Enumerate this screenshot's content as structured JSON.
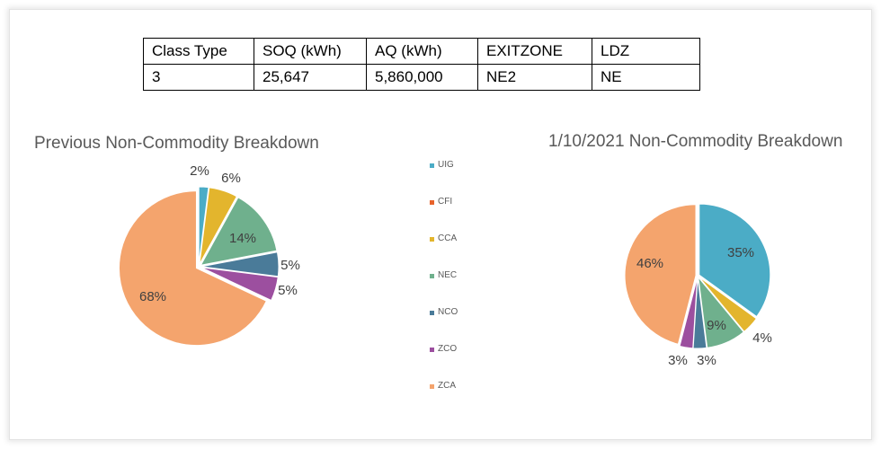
{
  "table": {
    "headers": [
      "Class Type",
      "SOQ (kWh)",
      "AQ (kWh)",
      "EXITZONE",
      "LDZ"
    ],
    "rows": [
      [
        "3",
        "25,647",
        "5,860,000",
        "NE2",
        "NE"
      ]
    ]
  },
  "legend": [
    {
      "label": "UIG",
      "color": "#4bacc6"
    },
    {
      "label": "CFI",
      "color": "#e8632b"
    },
    {
      "label": "CCA",
      "color": "#e3b52d"
    },
    {
      "label": "NEC",
      "color": "#6fb08d"
    },
    {
      "label": "NCO",
      "color": "#4a7b99"
    },
    {
      "label": "ZCO",
      "color": "#9c4f9f"
    },
    {
      "label": "ZCA",
      "color": "#f4a46d"
    }
  ],
  "chart_data": [
    {
      "type": "pie",
      "title": "Previous Non-Commodity Breakdown",
      "slices": [
        {
          "label": "UIG",
          "value": 2,
          "text": "2%"
        },
        {
          "label": "CFI",
          "value": 0,
          "text": ""
        },
        {
          "label": "CCA",
          "value": 6,
          "text": "6%"
        },
        {
          "label": "NEC",
          "value": 14,
          "text": "14%"
        },
        {
          "label": "NCO",
          "value": 5,
          "text": "5%"
        },
        {
          "label": "ZCO",
          "value": 5,
          "text": "5%"
        },
        {
          "label": "ZCA",
          "value": 68,
          "text": "68%"
        }
      ]
    },
    {
      "type": "pie",
      "title": "1/10/2021 Non-Commodity Breakdown",
      "slices": [
        {
          "label": "UIG",
          "value": 35,
          "text": "35%"
        },
        {
          "label": "CFI",
          "value": 0,
          "text": ""
        },
        {
          "label": "CCA",
          "value": 4,
          "text": "4%"
        },
        {
          "label": "NEC",
          "value": 9,
          "text": "9%"
        },
        {
          "label": "NCO",
          "value": 3,
          "text": "3%"
        },
        {
          "label": "ZCO",
          "value": 3,
          "text": "3%"
        },
        {
          "label": "ZCA",
          "value": 46,
          "text": "46%"
        }
      ]
    }
  ]
}
